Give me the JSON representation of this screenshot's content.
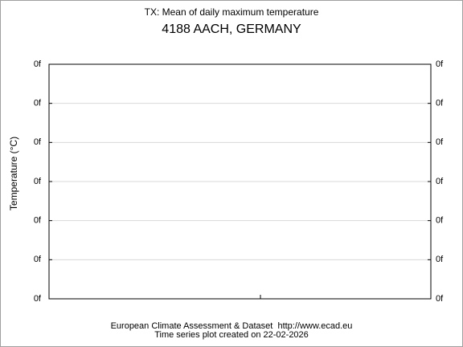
{
  "chart_data": {
    "type": "line",
    "title": "TX: Mean of daily maximum temperature",
    "subtitle": "4188 AACH, GERMANY",
    "y_label": "Temperature (°C)",
    "ytick_labels": [
      "0f",
      "0f",
      "0f",
      "0f",
      "0f",
      "0f",
      "0f"
    ],
    "grid": true,
    "footer": [
      "European Climate Assessment & Dataset  http://www.ecad.eu",
      "Time series plot created on 22-02-2026"
    ]
  }
}
